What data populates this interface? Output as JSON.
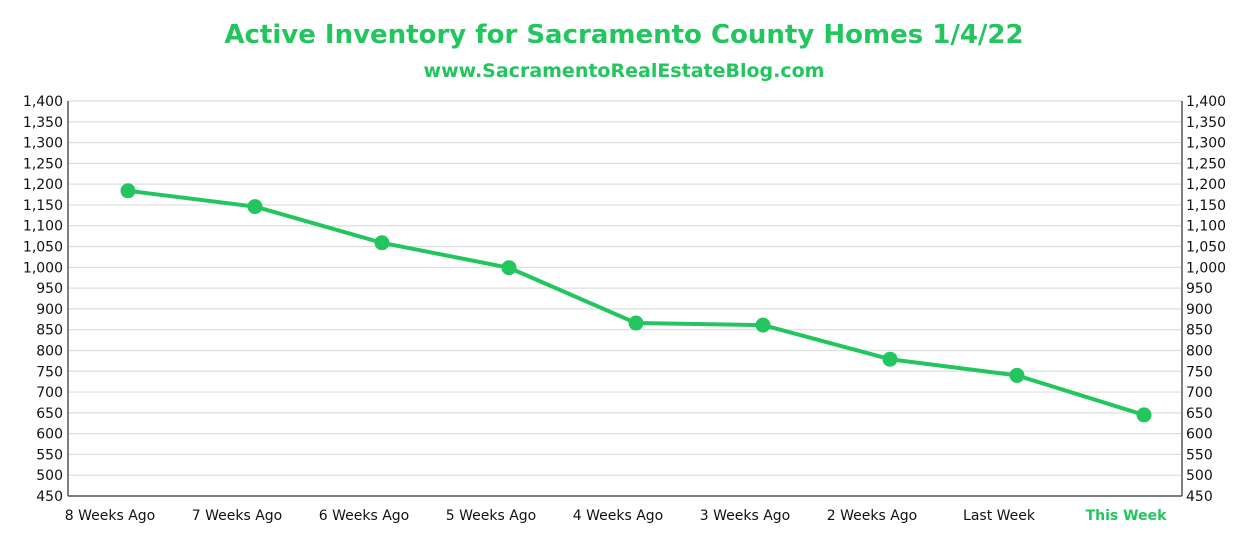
{
  "chart_data": {
    "type": "line",
    "title": "Active Inventory for Sacramento County Homes 1/4/22",
    "subtitle": "www.SacramentoRealEstateBlog.com",
    "categories": [
      "8 Weeks Ago",
      "7 Weeks Ago",
      "6 Weeks Ago",
      "5 Weeks Ago",
      "4 Weeks Ago",
      "3 Weeks Ago",
      "2 Weeks Ago",
      "Last Week",
      "This Week"
    ],
    "series": [
      {
        "values": [
          1184,
          1146,
          1059,
          999,
          866,
          861,
          779,
          740,
          645
        ]
      }
    ],
    "ylim": [
      450,
      1400
    ],
    "y_ticks": [
      450,
      500,
      550,
      600,
      650,
      700,
      750,
      800,
      850,
      900,
      950,
      1000,
      1050,
      1100,
      1150,
      1200,
      1250,
      1300,
      1350,
      1400
    ],
    "y_tick_labels": [
      "450",
      "500",
      "550",
      "600",
      "650",
      "700",
      "750",
      "800",
      "850",
      "900",
      "950",
      "1,000",
      "1,050",
      "1,100",
      "1,150",
      "1,200",
      "1,250",
      "1,300",
      "1,350",
      "1,400"
    ],
    "right_axis": true,
    "grid": true,
    "highlight_category": "This Week",
    "colors": {
      "line": "#22c55e",
      "text_accent": "#22c55e",
      "grid": "#dddddd",
      "axis": "#555555"
    }
  }
}
